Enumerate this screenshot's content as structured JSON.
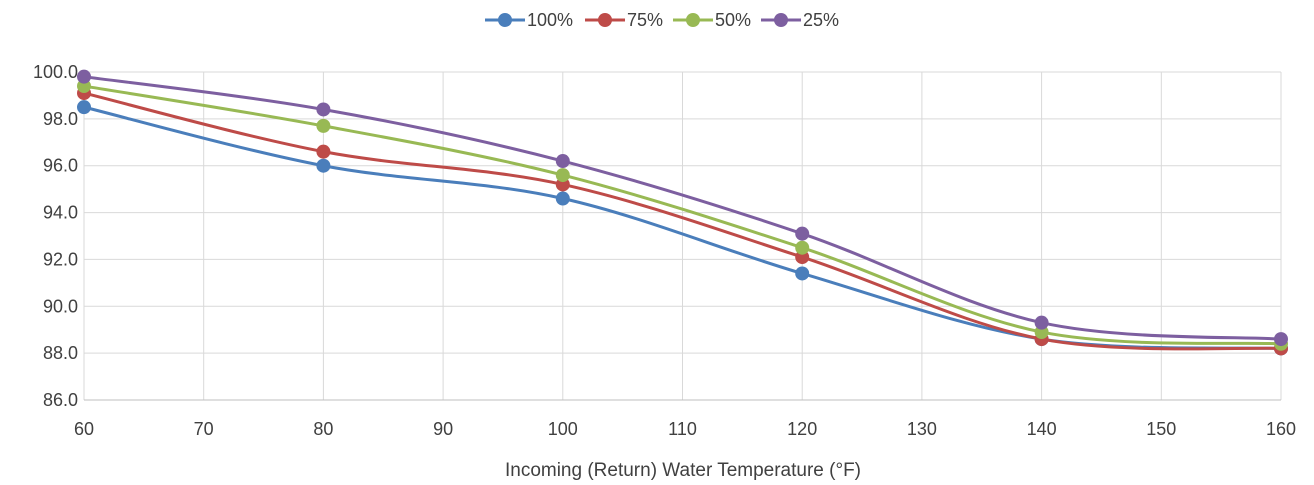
{
  "chart_data": {
    "type": "line",
    "smooth": true,
    "x": [
      60,
      80,
      100,
      120,
      140,
      160
    ],
    "series": [
      {
        "name": "100%",
        "color": "#4a7ebb",
        "values": [
          98.5,
          96.0,
          94.6,
          91.4,
          88.6,
          88.2
        ]
      },
      {
        "name": "75%",
        "color": "#be4b48",
        "values": [
          99.1,
          96.6,
          95.2,
          92.1,
          88.6,
          88.2
        ]
      },
      {
        "name": "50%",
        "color": "#98b954",
        "values": [
          99.4,
          97.7,
          95.6,
          92.5,
          88.9,
          88.4
        ]
      },
      {
        "name": "25%",
        "color": "#7d5fa0",
        "values": [
          99.8,
          98.4,
          96.2,
          93.1,
          89.3,
          88.6
        ]
      }
    ],
    "xlabel": "Incoming (Return) Water Temperature (°F)",
    "ylabel": "",
    "xlim": [
      60,
      160
    ],
    "ylim": [
      86,
      100
    ],
    "xticks": [
      "60",
      "70",
      "80",
      "90",
      "100",
      "110",
      "120",
      "130",
      "140",
      "150",
      "160"
    ],
    "yticks": [
      "86.0",
      "88.0",
      "90.0",
      "92.0",
      "94.0",
      "96.0",
      "98.0",
      "100.0"
    ],
    "grid": true,
    "legend": "top-center"
  }
}
